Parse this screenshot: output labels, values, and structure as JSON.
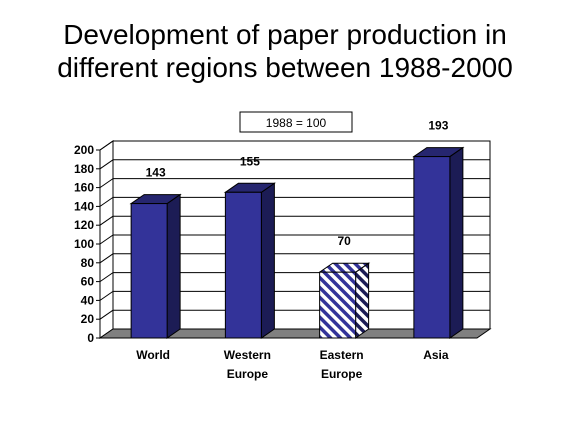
{
  "title_lines": [
    "Development of paper production in",
    "different regions between 1988-2000"
  ],
  "chart_data": {
    "type": "bar",
    "title": "Development of paper production in different regions between 1988-2000",
    "categories": [
      [
        "World"
      ],
      [
        "Western",
        "Europe"
      ],
      [
        "Eastern",
        "Europe"
      ],
      [
        "Asia"
      ]
    ],
    "values": [
      143,
      155,
      70,
      193
    ],
    "data_labels": [
      "143",
      "155",
      "70",
      "193"
    ],
    "annotation": "1988 = 100",
    "ylim": [
      0,
      200
    ],
    "yticks": [
      0,
      20,
      40,
      60,
      80,
      100,
      120,
      140,
      160,
      180,
      200
    ],
    "grid": true,
    "legend": "none",
    "bar_styles": [
      "solid",
      "solid",
      "hatched",
      "solid"
    ],
    "colors": {
      "bar_front": "#333399",
      "bar_side": "#1c1c55",
      "bar_top": "#26266f",
      "hatch": "#333399",
      "floor": "#808080",
      "grid": "#000000"
    }
  }
}
